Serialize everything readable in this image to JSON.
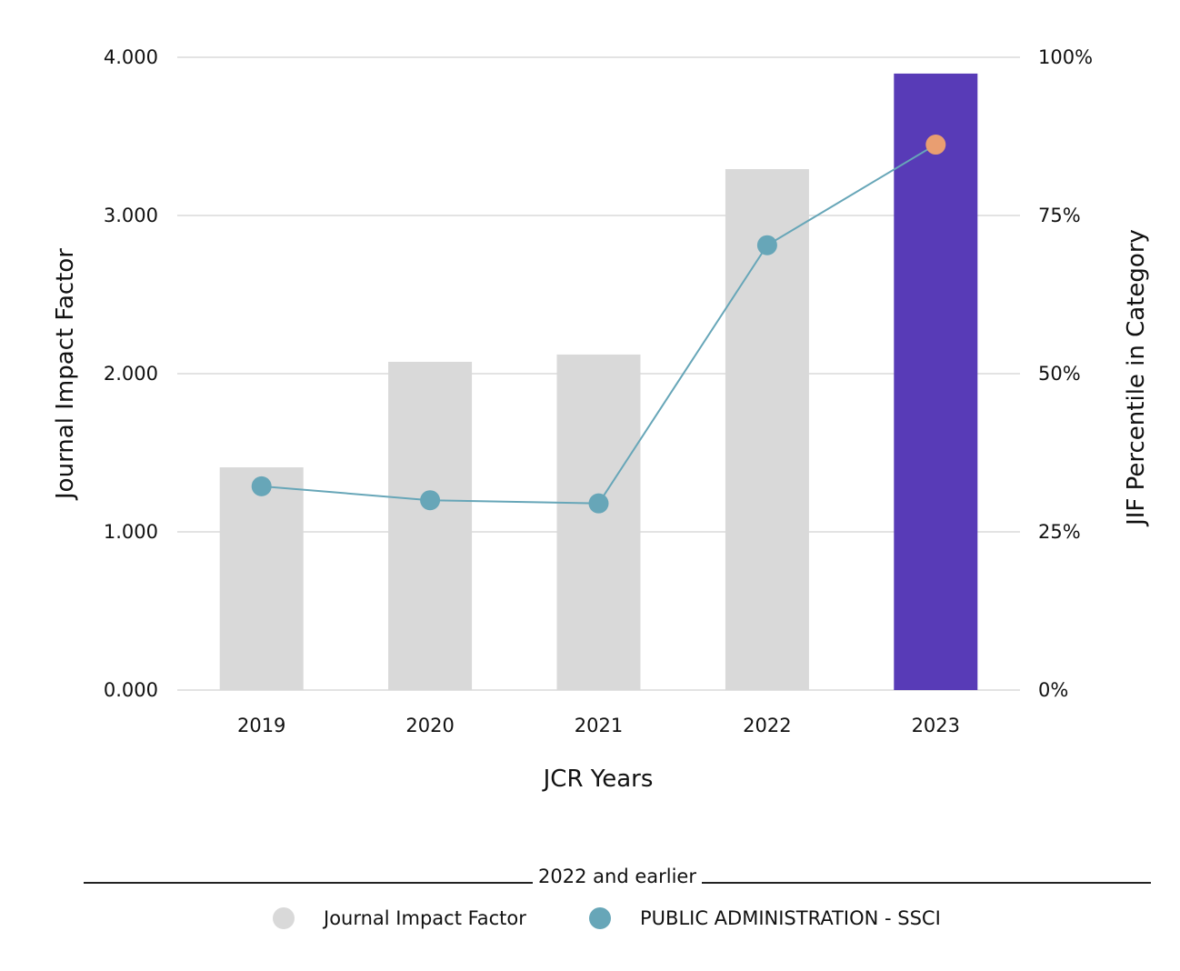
{
  "chart_data": {
    "type": "bar",
    "title": "",
    "categories": [
      "2019",
      "2020",
      "2021",
      "2022",
      "2023"
    ],
    "xlabel": "JCR Years",
    "ylabel": "Journal Impact Factor",
    "y2label": "JIF Percentile in Category",
    "ylim": [
      0,
      4
    ],
    "y2lim": [
      0,
      100
    ],
    "yticks": [
      "0.000",
      "1.000",
      "2.000",
      "3.000",
      "4.000"
    ],
    "y2ticks": [
      "0%",
      "25%",
      "50%",
      "75%",
      "100%"
    ],
    "grid": true,
    "series": [
      {
        "name": "Journal Impact Factor",
        "type": "bar",
        "axis": "left",
        "values": [
          1.408,
          2.075,
          2.121,
          3.293,
          3.897
        ],
        "color": "#d9d9d9",
        "highlight_index": 4,
        "highlight_color": "#583bb7"
      },
      {
        "name": "PUBLIC ADMINISTRATION - SSCI",
        "type": "line",
        "axis": "right",
        "values": [
          32.2,
          30.0,
          29.5,
          70.3,
          86.2
        ],
        "color": "#67a6b8",
        "highlight_index": 4,
        "highlight_color": "#e99e71"
      }
    ],
    "legend": {
      "placement": "bottom",
      "header": "2022 and earlier",
      "items": [
        {
          "label": "Journal Impact Factor",
          "color": "#d9d9d9"
        },
        {
          "label": "PUBLIC ADMINISTRATION - SSCI",
          "color": "#67a6b8"
        }
      ]
    }
  }
}
